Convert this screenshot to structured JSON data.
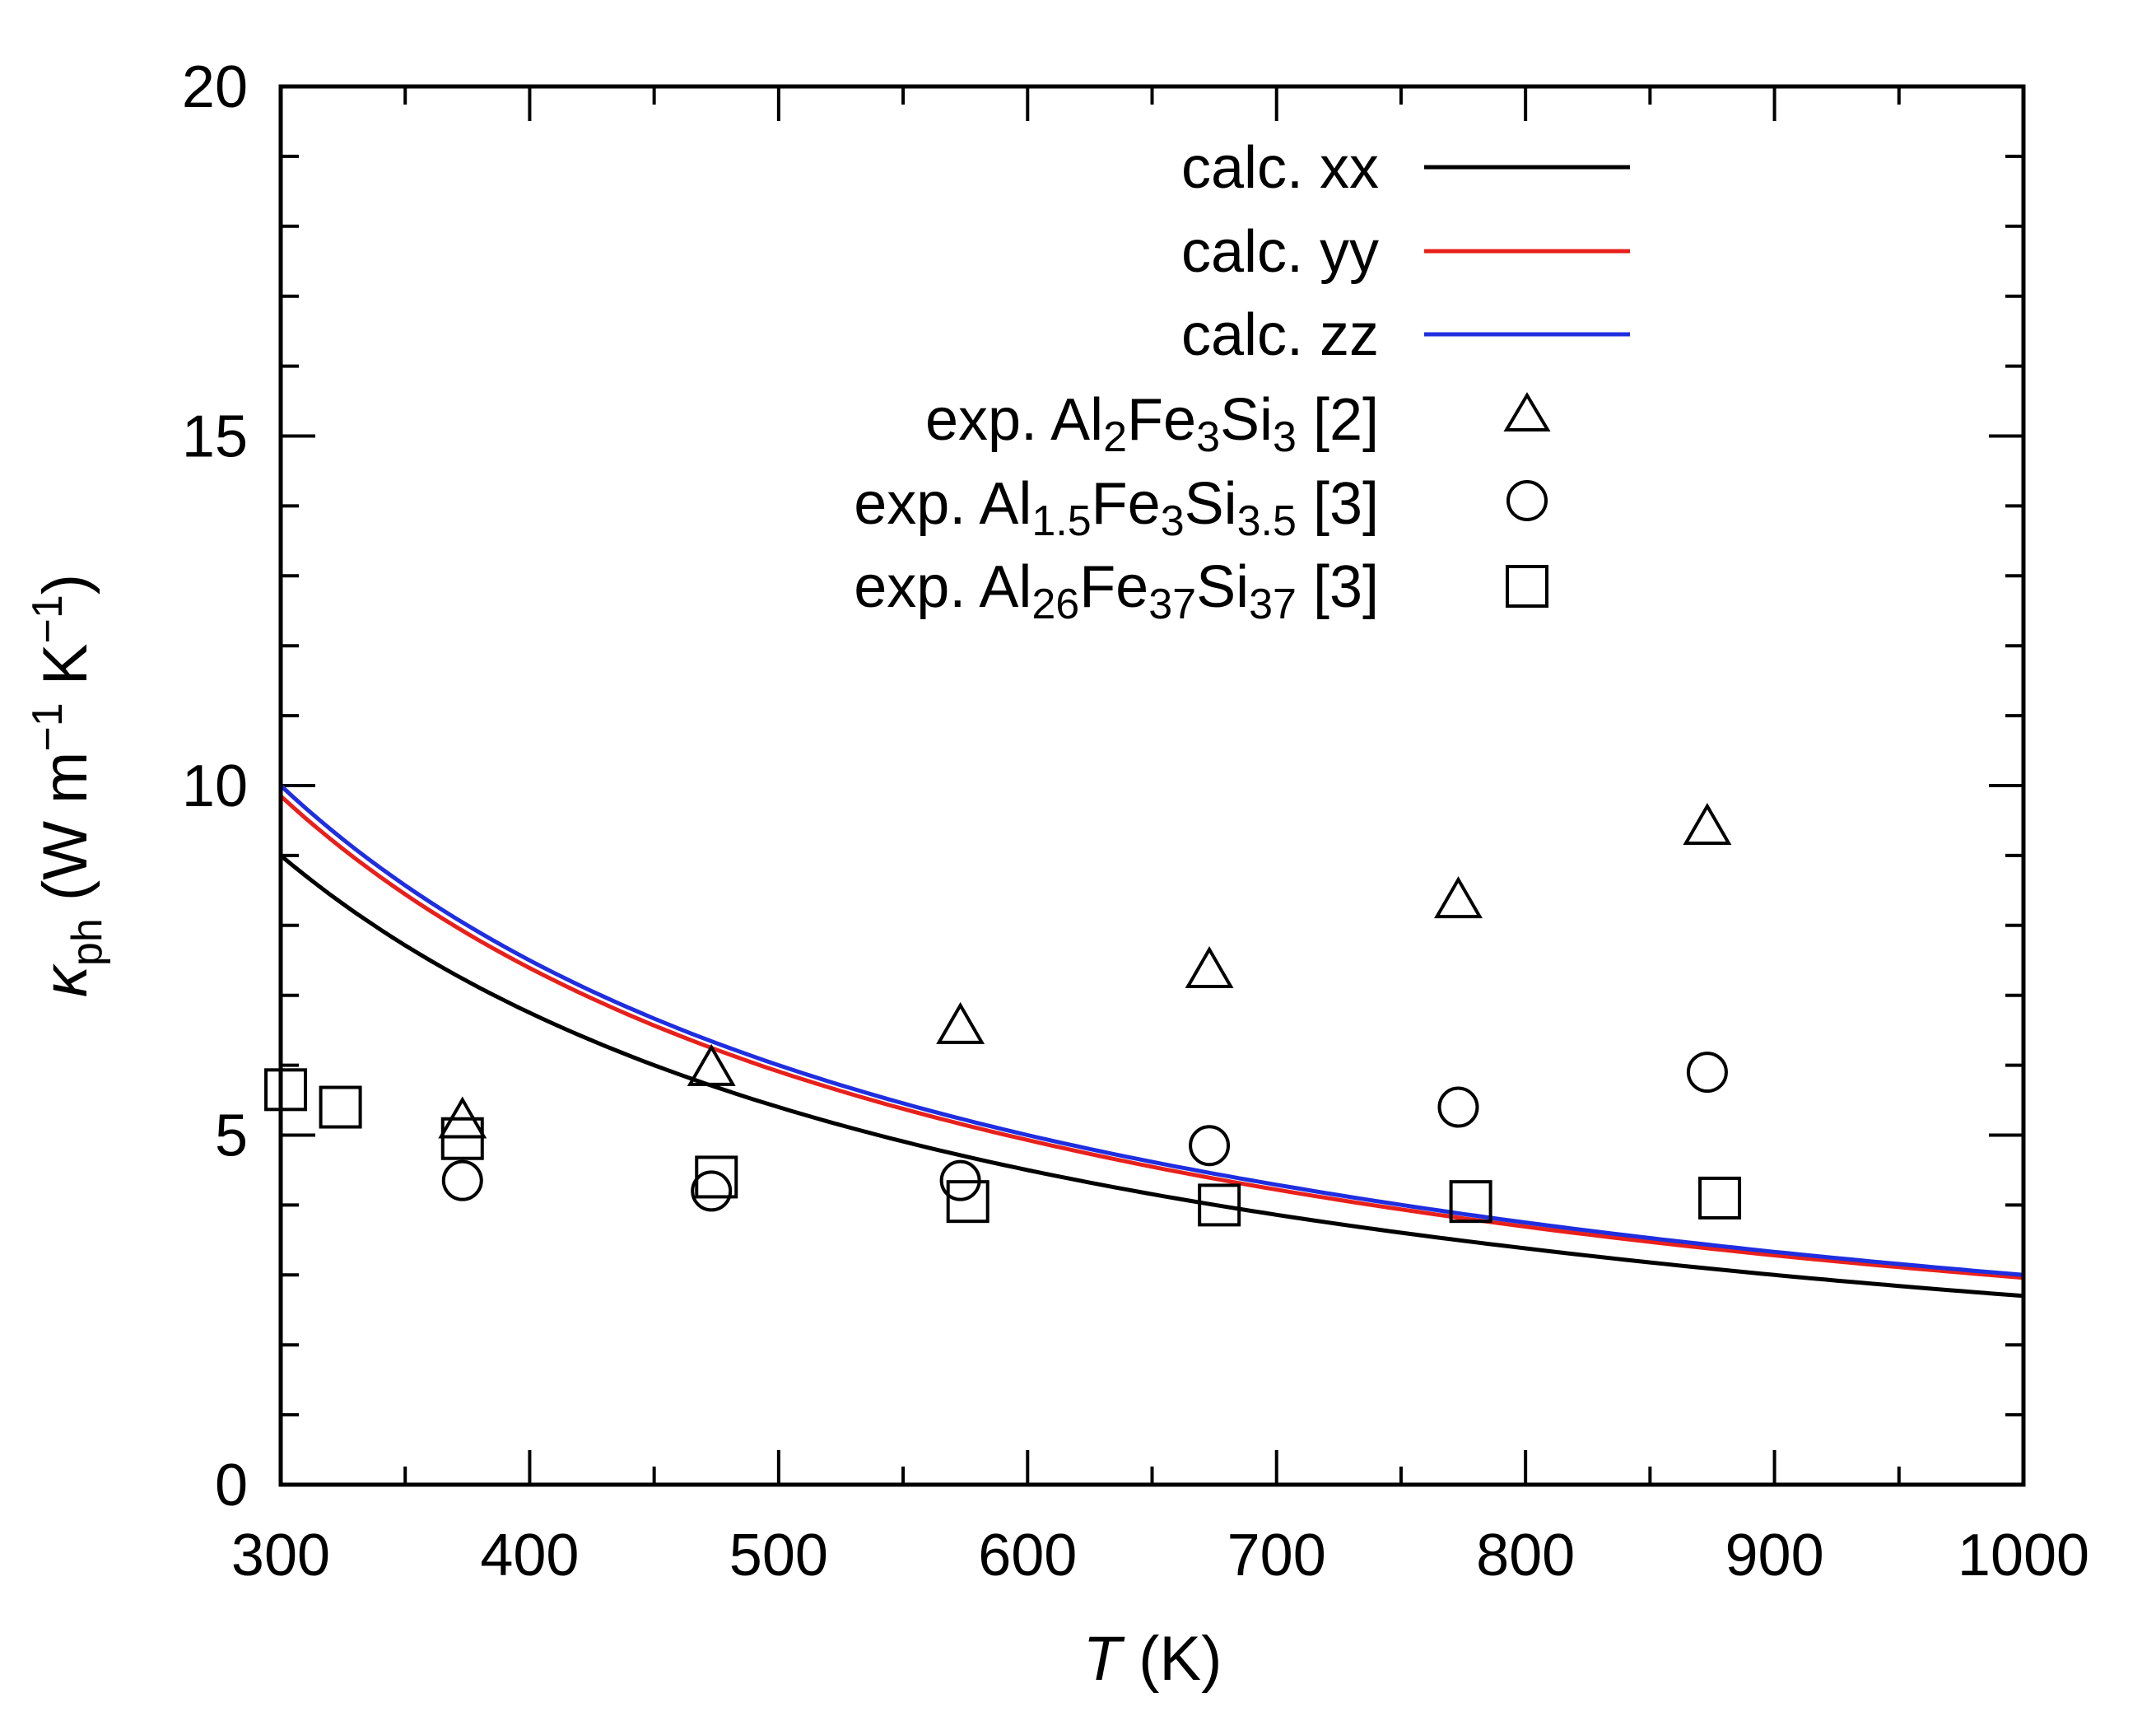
{
  "chart_data": {
    "type": "line",
    "xlabel_var": "T",
    "xlabel_unit": " (K)",
    "ylabel": {
      "symbol": "κ",
      "symbol_sub": "ph",
      "unit_open": " (W m",
      "unit_exp1": "−1",
      "unit_mid": " K",
      "unit_exp2": "−1",
      "unit_close": ")"
    },
    "xlim": [
      300,
      1000
    ],
    "ylim": [
      0,
      20
    ],
    "x_major_ticks": [
      300,
      400,
      500,
      600,
      700,
      800,
      900,
      1000
    ],
    "x_tick_labels": [
      "300",
      "400",
      "500",
      "600",
      "700",
      "800",
      "900",
      "1000"
    ],
    "x_minor_step": 50,
    "y_major_ticks": [
      0,
      5,
      10,
      15,
      20
    ],
    "y_tick_labels": [
      "0",
      "5",
      "10",
      "15",
      "20"
    ],
    "y_minor_step": 1,
    "grid": false,
    "legend_position": "top-right",
    "series": [
      {
        "name": "calc. xx",
        "kind": "line",
        "color": "#000000",
        "x": [
          300,
          400,
          500,
          600,
          700,
          800,
          900,
          1000
        ],
        "y": [
          9.0,
          6.75,
          5.4,
          4.5,
          3.86,
          3.38,
          3.0,
          2.7
        ]
      },
      {
        "name": "calc. yy",
        "kind": "line",
        "color": "#e8201c",
        "x": [
          300,
          400,
          500,
          600,
          700,
          800,
          900,
          1000
        ],
        "y": [
          9.85,
          7.39,
          5.91,
          4.93,
          4.22,
          3.69,
          3.28,
          2.96
        ]
      },
      {
        "name": "calc. zz",
        "kind": "line",
        "color": "#1f2ee0",
        "x": [
          300,
          400,
          500,
          600,
          700,
          800,
          900,
          1000
        ],
        "y": [
          10.0,
          7.5,
          6.0,
          5.0,
          4.29,
          3.75,
          3.33,
          3.0
        ]
      },
      {
        "name": "exp. Al2Fe3Si3 [2]",
        "legend": {
          "pre": "exp. Al",
          "s1": "2",
          "m1": "Fe",
          "s2": "3",
          "m2": "Si",
          "s3": "3",
          "post": " [2]"
        },
        "kind": "marker",
        "marker": "triangle",
        "color": "#000000",
        "x": [
          373,
          473,
          573,
          673,
          773,
          873
        ],
        "y": [
          5.2,
          5.95,
          6.55,
          7.35,
          8.35,
          9.4
        ]
      },
      {
        "name": "exp. Al1.5Fe3Si3.5 [3]",
        "legend": {
          "pre": "exp. Al",
          "s1": "1.5",
          "m1": "Fe",
          "s2": "3",
          "m2": "Si",
          "s3": "3.5",
          "post": " [3]"
        },
        "kind": "marker",
        "marker": "circle",
        "color": "#000000",
        "x": [
          373,
          473,
          573,
          673,
          773,
          873
        ],
        "y": [
          4.35,
          4.2,
          4.35,
          4.85,
          5.4,
          5.9
        ]
      },
      {
        "name": "exp. Al26Fe37Si37 [3]",
        "legend": {
          "pre": "exp. Al",
          "s1": "26",
          "m1": "Fe",
          "s2": "37",
          "m2": "Si",
          "s3": "37",
          "post": " [3]"
        },
        "kind": "marker",
        "marker": "square",
        "color": "#000000",
        "x": [
          302,
          324,
          373,
          475,
          576,
          677,
          778,
          878
        ],
        "y": [
          5.65,
          5.4,
          4.95,
          4.4,
          4.05,
          4.0,
          4.05,
          4.1
        ]
      }
    ]
  }
}
